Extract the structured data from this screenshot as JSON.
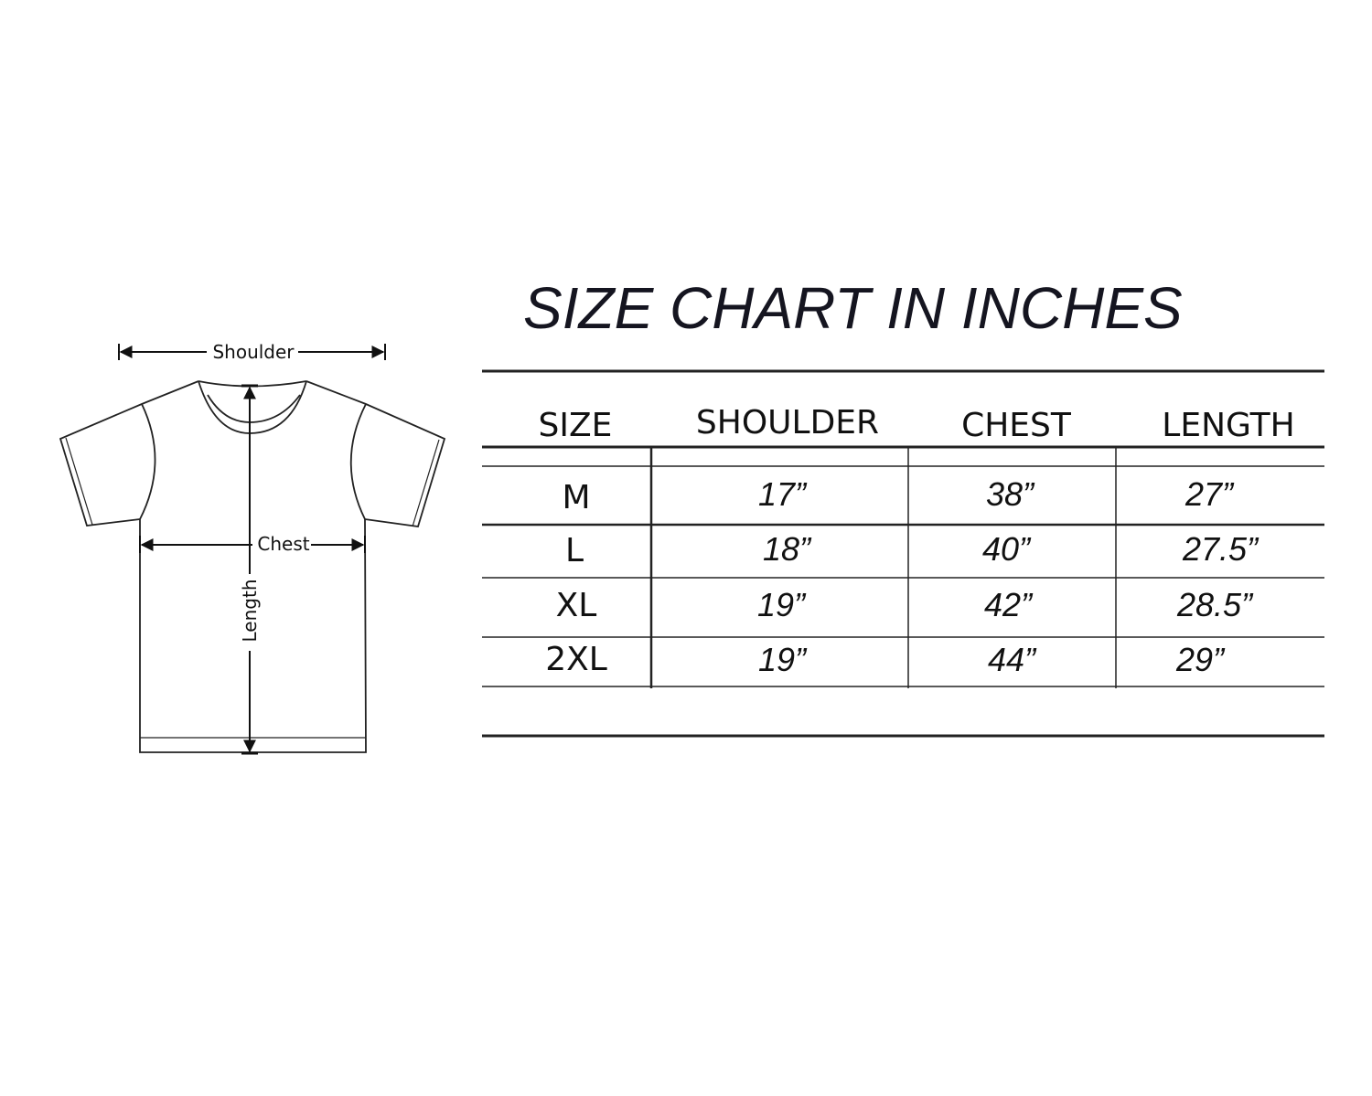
{
  "diagram": {
    "shoulder_label": "Shoulder",
    "chest_label": "Chest",
    "length_label": "Length"
  },
  "table": {
    "title": "SIZE CHART IN INCHES",
    "headers": [
      "SIZE",
      "SHOULDER",
      "CHEST",
      "LENGTH"
    ],
    "rows": [
      [
        "M",
        "17”",
        "38”",
        "27”"
      ],
      [
        "L",
        "18”",
        "40”",
        "27.5”"
      ],
      [
        "XL",
        "19”",
        "42”",
        "28.5”"
      ],
      [
        "2XL",
        "19”",
        "44”",
        "29”"
      ]
    ]
  }
}
